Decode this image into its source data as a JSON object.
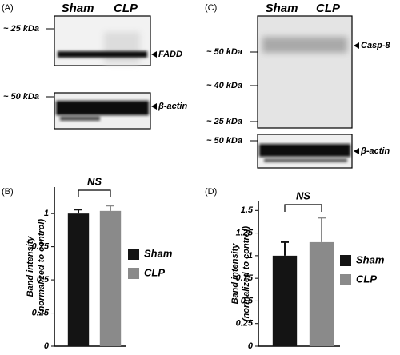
{
  "panels": {
    "A": {
      "label": "(A)",
      "lanes": [
        "Sham",
        "CLP"
      ],
      "markers": [
        "~ 25 kDa",
        "~ 50 kDa"
      ],
      "bands": [
        "FADD",
        "β-actin"
      ]
    },
    "C": {
      "label": "(C)",
      "lanes": [
        "Sham",
        "CLP"
      ],
      "markers": [
        "~ 50 kDa",
        "~ 40 kDa",
        "~ 25 kDa",
        "~ 50 kDa"
      ],
      "bands": [
        "Casp-8",
        "β-actin"
      ]
    }
  },
  "chart_data": [
    {
      "type": "bar",
      "panel_label": "(B)",
      "y_label": [
        "Band intensity",
        "(normalized to control)"
      ],
      "categories": [
        "Sham",
        "CLP"
      ],
      "values": [
        1.0,
        1.02
      ],
      "errors": [
        0.03,
        0.04
      ],
      "colors": [
        "#141414",
        "#8a8a8a"
      ],
      "ylim": [
        0,
        1.2
      ],
      "yticks": [
        0,
        0.25,
        0.5,
        0.75,
        1
      ],
      "annotation": "NS",
      "legend": "right"
    },
    {
      "type": "bar",
      "panel_label": "(D)",
      "y_label": [
        "Band intensity",
        "(normalized to control)"
      ],
      "categories": [
        "Sham",
        "CLP"
      ],
      "values": [
        1.0,
        1.15
      ],
      "errors": [
        0.15,
        0.27
      ],
      "colors": [
        "#141414",
        "#8a8a8a"
      ],
      "ylim": [
        0,
        1.6
      ],
      "yticks": [
        0,
        0.25,
        0.5,
        0.75,
        1,
        1.25,
        1.5
      ],
      "annotation": "NS",
      "legend": "right"
    }
  ]
}
